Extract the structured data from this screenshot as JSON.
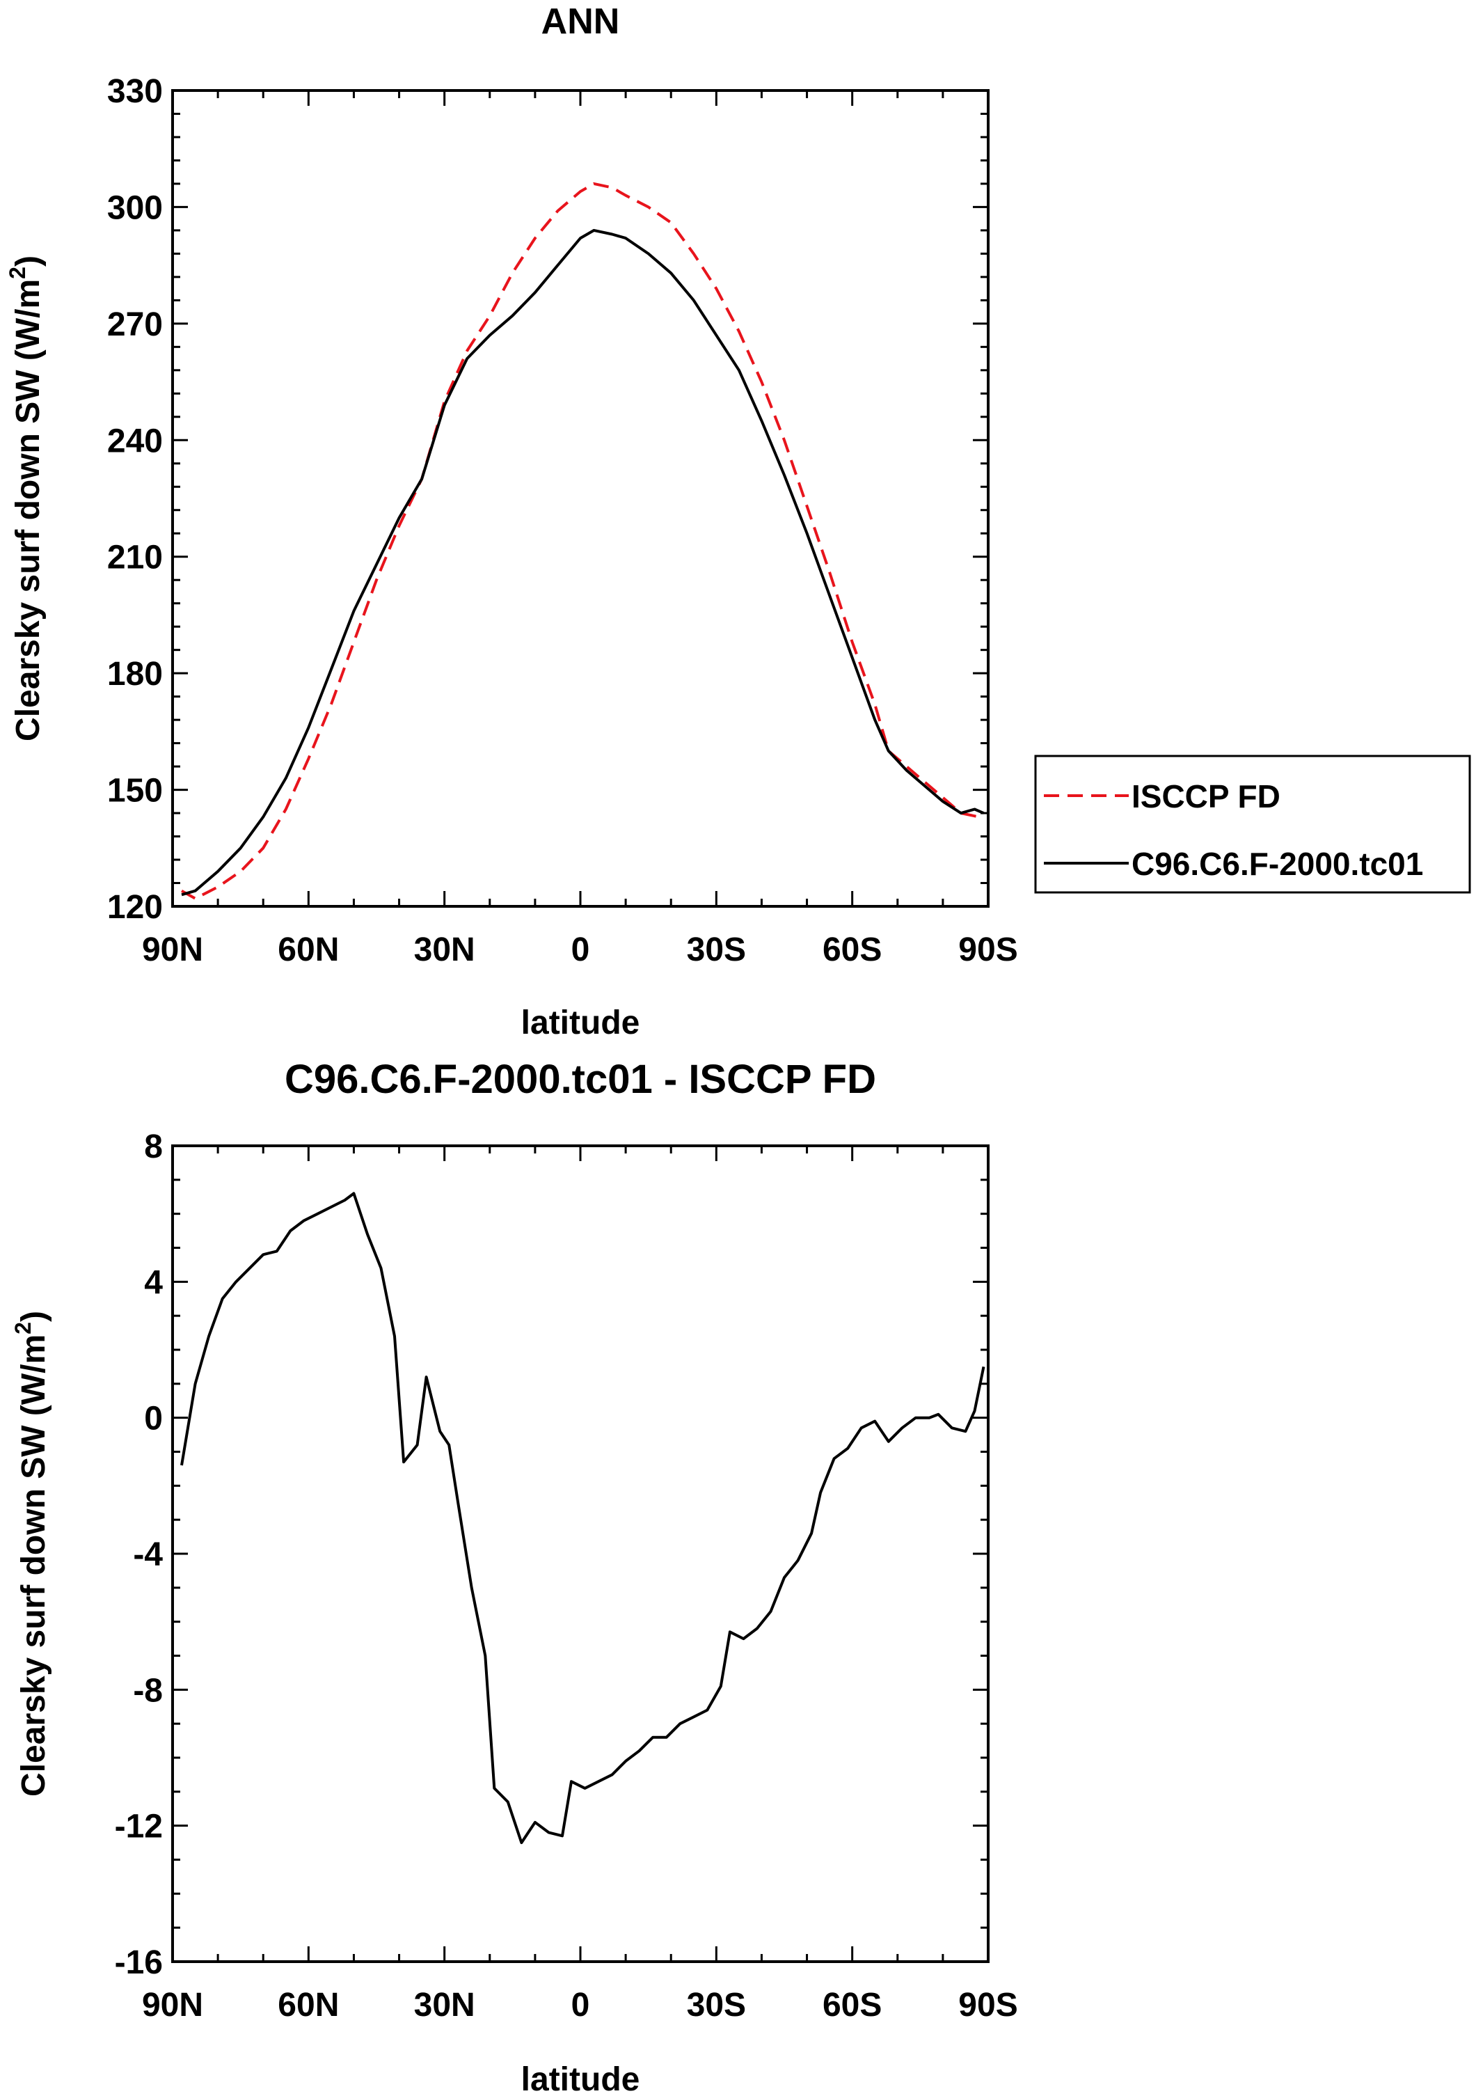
{
  "chart_data": [
    {
      "type": "line",
      "title": "ANN",
      "xlabel": "latitude",
      "ylabel": "Clearsky surf down SW (W/m",
      "ylabel_sup": "2",
      "ylabel_close": ")",
      "xlim": [
        90,
        -90
      ],
      "ylim": [
        120,
        330
      ],
      "yticks": [
        120,
        150,
        180,
        210,
        240,
        270,
        300,
        330
      ],
      "xticks": [
        90,
        60,
        30,
        0,
        -30,
        -60,
        -90
      ],
      "xtick_labels": [
        "90N",
        "60N",
        "30N",
        "0",
        "30S",
        "60S",
        "90S"
      ],
      "legend": {
        "placement": "right-outside",
        "entries": [
          "ISCCP FD",
          "C96.C6.F-2000.tc01"
        ]
      },
      "series": [
        {
          "name": "ISCCP FD",
          "color": "#e8141c",
          "dash": "dashed",
          "points": [
            [
              88,
              124
            ],
            [
              85,
              122
            ],
            [
              80,
              125
            ],
            [
              75,
              129
            ],
            [
              70,
              135
            ],
            [
              65,
              145
            ],
            [
              60,
              158
            ],
            [
              55,
              172
            ],
            [
              50,
              188
            ],
            [
              45,
              204
            ],
            [
              40,
              218
            ],
            [
              35,
              230
            ],
            [
              30,
              250
            ],
            [
              25,
              263
            ],
            [
              20,
              272
            ],
            [
              15,
              283
            ],
            [
              10,
              292
            ],
            [
              5,
              299
            ],
            [
              0,
              304
            ],
            [
              -3,
              306
            ],
            [
              -7,
              305
            ],
            [
              -10,
              303
            ],
            [
              -15,
              300
            ],
            [
              -20,
              296
            ],
            [
              -25,
              288
            ],
            [
              -30,
              279
            ],
            [
              -35,
              268
            ],
            [
              -40,
              255
            ],
            [
              -45,
              240
            ],
            [
              -50,
              223
            ],
            [
              -55,
              206
            ],
            [
              -60,
              188
            ],
            [
              -65,
              172
            ],
            [
              -68,
              160
            ],
            [
              -72,
              156
            ],
            [
              -76,
              152
            ],
            [
              -80,
              148
            ],
            [
              -84,
              144
            ],
            [
              -88,
              143
            ]
          ]
        },
        {
          "name": "C96.C6.F-2000.tc01",
          "color": "#000000",
          "dash": "solid",
          "points": [
            [
              88,
              123
            ],
            [
              85,
              124
            ],
            [
              80,
              129
            ],
            [
              75,
              135
            ],
            [
              70,
              143
            ],
            [
              65,
              153
            ],
            [
              60,
              166
            ],
            [
              55,
              181
            ],
            [
              50,
              196
            ],
            [
              45,
              208
            ],
            [
              40,
              220
            ],
            [
              35,
              230
            ],
            [
              30,
              249
            ],
            [
              25,
              261
            ],
            [
              20,
              267
            ],
            [
              15,
              272
            ],
            [
              10,
              278
            ],
            [
              5,
              285
            ],
            [
              0,
              292
            ],
            [
              -3,
              294
            ],
            [
              -7,
              293
            ],
            [
              -10,
              292
            ],
            [
              -15,
              288
            ],
            [
              -20,
              283
            ],
            [
              -25,
              276
            ],
            [
              -30,
              267
            ],
            [
              -35,
              258
            ],
            [
              -40,
              245
            ],
            [
              -45,
              231
            ],
            [
              -50,
              216
            ],
            [
              -55,
              200
            ],
            [
              -60,
              184
            ],
            [
              -65,
              168
            ],
            [
              -68,
              160
            ],
            [
              -72,
              155
            ],
            [
              -76,
              151
            ],
            [
              -80,
              147
            ],
            [
              -84,
              144
            ],
            [
              -87,
              145
            ],
            [
              -89,
              144
            ]
          ]
        }
      ]
    },
    {
      "type": "line",
      "title": "C96.C6.F-2000.tc01 - ISCCP FD",
      "xlabel": "latitude",
      "ylabel": "Clearsky surf down SW (W/m",
      "ylabel_sup": "2",
      "ylabel_close": ")",
      "xlim": [
        90,
        -90
      ],
      "ylim": [
        -16,
        8
      ],
      "yticks": [
        -16,
        -12,
        -8,
        -4,
        0,
        4,
        8
      ],
      "xticks": [
        90,
        60,
        30,
        0,
        -30,
        -60,
        -90
      ],
      "xtick_labels": [
        "90N",
        "60N",
        "30N",
        "0",
        "30S",
        "60S",
        "90S"
      ],
      "series": [
        {
          "name": "C96.C6.F-2000.tc01 - ISCCP FD",
          "color": "#000000",
          "dash": "solid",
          "points": [
            [
              88,
              -1.4
            ],
            [
              85,
              1.0
            ],
            [
              82,
              2.4
            ],
            [
              79,
              3.5
            ],
            [
              76,
              4.0
            ],
            [
              73,
              4.4
            ],
            [
              70,
              4.8
            ],
            [
              67,
              4.9
            ],
            [
              64,
              5.5
            ],
            [
              61,
              5.8
            ],
            [
              58,
              6.0
            ],
            [
              55,
              6.2
            ],
            [
              52,
              6.4
            ],
            [
              50,
              6.6
            ],
            [
              47,
              5.4
            ],
            [
              44,
              4.4
            ],
            [
              41,
              2.4
            ],
            [
              39,
              -1.3
            ],
            [
              36,
              -0.8
            ],
            [
              34,
              1.2
            ],
            [
              31,
              -0.4
            ],
            [
              29,
              -0.8
            ],
            [
              27,
              -2.5
            ],
            [
              24,
              -5.0
            ],
            [
              21,
              -7.0
            ],
            [
              19,
              -10.9
            ],
            [
              16,
              -11.3
            ],
            [
              13,
              -12.5
            ],
            [
              10,
              -11.9
            ],
            [
              7,
              -12.2
            ],
            [
              4,
              -12.3
            ],
            [
              2,
              -10.7
            ],
            [
              -1,
              -10.9
            ],
            [
              -4,
              -10.7
            ],
            [
              -7,
              -10.5
            ],
            [
              -10,
              -10.1
            ],
            [
              -13,
              -9.8
            ],
            [
              -16,
              -9.4
            ],
            [
              -19,
              -9.4
            ],
            [
              -22,
              -9.0
            ],
            [
              -25,
              -8.8
            ],
            [
              -28,
              -8.6
            ],
            [
              -31,
              -7.9
            ],
            [
              -33,
              -6.3
            ],
            [
              -36,
              -6.5
            ],
            [
              -39,
              -6.2
            ],
            [
              -42,
              -5.7
            ],
            [
              -45,
              -4.7
            ],
            [
              -48,
              -4.2
            ],
            [
              -51,
              -3.4
            ],
            [
              -53,
              -2.2
            ],
            [
              -56,
              -1.2
            ],
            [
              -59,
              -0.9
            ],
            [
              -62,
              -0.3
            ],
            [
              -65,
              -0.1
            ],
            [
              -68,
              -0.7
            ],
            [
              -71,
              -0.3
            ],
            [
              -74,
              0.0
            ],
            [
              -77,
              0.0
            ],
            [
              -79,
              0.1
            ],
            [
              -82,
              -0.3
            ],
            [
              -85,
              -0.4
            ],
            [
              -87,
              0.2
            ],
            [
              -89,
              1.5
            ]
          ]
        }
      ]
    }
  ]
}
